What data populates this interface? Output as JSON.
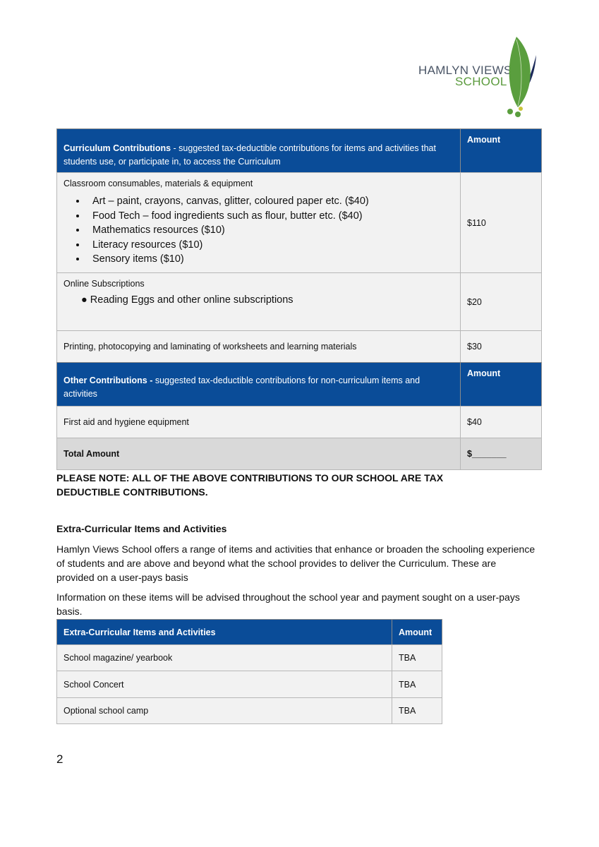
{
  "logo": {
    "line1": "HAMLYN VIEWS",
    "line2": "SCHOOL"
  },
  "curriculum_table": {
    "header": {
      "title": "Curriculum Contributions",
      "desc": " - suggested tax-deductible contributions for items and activities that students use, or participate in, to access the Curriculum",
      "amount": "Amount"
    },
    "rows": [
      {
        "title": "Classroom consumables, materials & equipment",
        "bullets": [
          "Art – paint, crayons, canvas, glitter, coloured paper etc. ($40)",
          "Food Tech – food ingredients such as flour, butter etc. ($40)",
          "Mathematics resources ($10)",
          "Literacy resources ($10)",
          "Sensory items ($10)"
        ],
        "amount": "$110"
      },
      {
        "title": "Online Subscriptions",
        "bullets": [
          "● Reading Eggs and other online subscriptions"
        ],
        "amount": "$20"
      },
      {
        "title": "Printing, photocopying and laminating of worksheets and learning materials",
        "amount": "$30"
      }
    ],
    "other_header": {
      "title": "Other Contributions - ",
      "desc": "suggested tax-deductible contributions for non-curriculum items and activities",
      "amount": "Amount"
    },
    "other_rows": [
      {
        "title": "First aid and hygiene equipment",
        "amount": "$40"
      }
    ],
    "total": {
      "label": "Total Amount",
      "amount": "$_______"
    }
  },
  "note": "PLEASE NOTE: ALL OF THE ABOVE CONTRIBUTIONS TO OUR SCHOOL ARE TAX DEDUCTIBLE CONTRIBUTIONS.",
  "extra": {
    "heading": "Extra-Curricular Items and Activities",
    "para1": "Hamlyn Views School offers a range of items and activities that enhance or broaden the schooling experience of students and are above and beyond what the school provides to deliver the Curriculum. These are provided on a user-pays basis",
    "para2": "Information on these items will be advised throughout the school year and payment sought on a user-pays basis.",
    "table": {
      "header": {
        "item": "Extra-Curricular Items and Activities",
        "amount": "Amount"
      },
      "rows": [
        {
          "item": "School magazine/ yearbook",
          "amount": "TBA"
        },
        {
          "item": "School Concert",
          "amount": "TBA"
        },
        {
          "item": "Optional school camp",
          "amount": "TBA"
        }
      ]
    }
  },
  "page_number": "2"
}
